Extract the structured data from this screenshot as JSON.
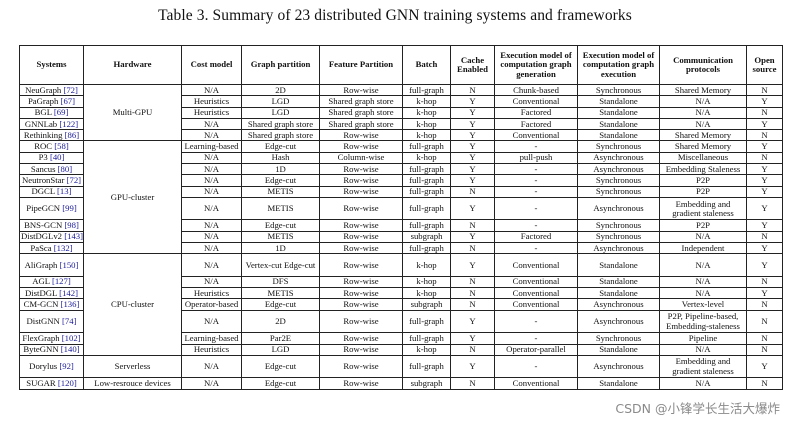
{
  "caption": "Table 3.  Summary of 23 distributed GNN training systems and frameworks",
  "headers": {
    "systems": "Systems",
    "hardware": "Hardware",
    "cost_model": "Cost model",
    "graph_partition": "Graph partition",
    "feature_partition": "Feature Partition",
    "batch": "Batch",
    "cache": "Cache Enabled",
    "exec_gen": "Execution model of computation graph generation",
    "exec_exec": "Execution model of computation graph execution",
    "comm": "Communication protocols",
    "open": "Open source"
  },
  "hardware_groups": {
    "multi_gpu": "Multi-GPU",
    "gpu_cluster": "GPU-cluster",
    "cpu_cluster": "CPU-cluster",
    "serverless": "Serverless",
    "low_resource": "Low-resrouce devices"
  },
  "rows": [
    {
      "name": "NeuGraph",
      "ref": "[72]",
      "cost": "N/A",
      "gp": "2D",
      "fp": "Row-wise",
      "batch": "full-graph",
      "cache": "N",
      "gen": "Chunk-based",
      "exec": "Synchronous",
      "comm": "Shared Memory",
      "open": "N"
    },
    {
      "name": "PaGraph",
      "ref": "[67]",
      "cost": "Heuristics",
      "gp": "LGD",
      "fp": "Shared graph store",
      "batch": "k-hop",
      "cache": "Y",
      "gen": "Conventional",
      "exec": "Standalone",
      "comm": "N/A",
      "open": "Y"
    },
    {
      "name": "BGL",
      "ref": "[69]",
      "cost": "Heuristics",
      "gp": "LGD",
      "fp": "Shared graph store",
      "batch": "k-hop",
      "cache": "Y",
      "gen": "Factored",
      "exec": "Standalone",
      "comm": "N/A",
      "open": "N"
    },
    {
      "name": "GNNLab",
      "ref": "[122]",
      "cost": "N/A",
      "gp": "Shared graph store",
      "fp": "Shared graph store",
      "batch": "k-hop",
      "cache": "Y",
      "gen": "Factored",
      "exec": "Standalone",
      "comm": "N/A",
      "open": "Y"
    },
    {
      "name": "Rethinking",
      "ref": "[86]",
      "cost": "N/A",
      "gp": "Shared graph store",
      "fp": "Row-wise",
      "batch": "k-hop",
      "cache": "Y",
      "gen": "Conventional",
      "exec": "Standalone",
      "comm": "Shared Memory",
      "open": "N"
    },
    {
      "name": "ROC",
      "ref": "[58]",
      "cost": "Learning-based",
      "gp": "Edge-cut",
      "fp": "Row-wise",
      "batch": "full-graph",
      "cache": "Y",
      "gen": "-",
      "exec": "Synchronous",
      "comm": "Shared Memory",
      "open": "Y"
    },
    {
      "name": "P3",
      "ref": "[40]",
      "cost": "N/A",
      "gp": "Hash",
      "fp": "Column-wise",
      "batch": "k-hop",
      "cache": "Y",
      "gen": "pull-push",
      "exec": "Asynchronous",
      "comm": "Miscellaneous",
      "open": "N"
    },
    {
      "name": "Sancus",
      "ref": "[80]",
      "cost": "N/A",
      "gp": "1D",
      "fp": "Row-wise",
      "batch": "full-graph",
      "cache": "Y",
      "gen": "-",
      "exec": "Asynchronous",
      "comm": "Embedding Staleness",
      "open": "Y"
    },
    {
      "name": "NeutronStar",
      "ref": "[72]",
      "cost": "N/A",
      "gp": "Edge-cut",
      "fp": "Row-wise",
      "batch": "full-graph",
      "cache": "Y",
      "gen": "-",
      "exec": "Synchronous",
      "comm": "P2P",
      "open": "Y"
    },
    {
      "name": "DGCL",
      "ref": "[13]",
      "cost": "N/A",
      "gp": "METIS",
      "fp": "Row-wise",
      "batch": "full-graph",
      "cache": "N",
      "gen": "-",
      "exec": "Synchronous",
      "comm": "P2P",
      "open": "Y"
    },
    {
      "name": "PipeGCN",
      "ref": "[99]",
      "cost": "N/A",
      "gp": "METIS",
      "fp": "Row-wise",
      "batch": "full-graph",
      "cache": "Y",
      "gen": "-",
      "exec": "Asynchronous",
      "comm": "Embedding and gradient staleness",
      "open": "Y",
      "tall": true
    },
    {
      "name": "BNS-GCN",
      "ref": "[98]",
      "cost": "N/A",
      "gp": "Edge-cut",
      "fp": "Row-wise",
      "batch": "full-graph",
      "cache": "N",
      "gen": "-",
      "exec": "Synchronous",
      "comm": "P2P",
      "open": "Y"
    },
    {
      "name": "DistDGLv2",
      "ref": "[143]",
      "cost": "N/A",
      "gp": "METIS",
      "fp": "Row-wise",
      "batch": "subgraph",
      "cache": "Y",
      "gen": "Factored",
      "exec": "Synchronous",
      "comm": "N/A",
      "open": "N"
    },
    {
      "name": "PaSca",
      "ref": "[132]",
      "cost": "N/A",
      "gp": "1D",
      "fp": "Row-wise",
      "batch": "full-graph",
      "cache": "N",
      "gen": "-",
      "exec": "Asynchronous",
      "comm": "Independent",
      "open": "Y"
    },
    {
      "name": "AliGraph",
      "ref": "[150]",
      "cost": "N/A",
      "gp": "Vertex-cut Edge-cut",
      "fp": "Row-wise",
      "batch": "k-hop",
      "cache": "Y",
      "gen": "Conventional",
      "exec": "Standalone",
      "comm": "N/A",
      "open": "Y",
      "tall": true
    },
    {
      "name": "AGL",
      "ref": "[127]",
      "cost": "N/A",
      "gp": "DFS",
      "fp": "Row-wise",
      "batch": "k-hop",
      "cache": "N",
      "gen": "Conventional",
      "exec": "Standalone",
      "comm": "N/A",
      "open": "N"
    },
    {
      "name": "DistDGL",
      "ref": "[142]",
      "cost": "Heuristics",
      "gp": "METIS",
      "fp": "Row-wise",
      "batch": "k-hop",
      "cache": "N",
      "gen": "Conventional",
      "exec": "Standalone",
      "comm": "N/A",
      "open": "Y"
    },
    {
      "name": "CM-GCN",
      "ref": "[136]",
      "cost": "Operator-based",
      "gp": "Edge-cut",
      "fp": "Row-wise",
      "batch": "subgraph",
      "cache": "N",
      "gen": "Conventional",
      "exec": "Asynchronous",
      "comm": "Vertex-level",
      "open": "N"
    },
    {
      "name": "DistGNN",
      "ref": "[74]",
      "cost": "N/A",
      "gp": "2D",
      "fp": "Row-wise",
      "batch": "full-graph",
      "cache": "Y",
      "gen": "-",
      "exec": "Asynchronous",
      "comm": "P2P, Pipeline-based, Embedding-staleness",
      "open": "N",
      "tall": true
    },
    {
      "name": "FlexGraph",
      "ref": "[102]",
      "cost": "Learning-based",
      "gp": "Par2E",
      "fp": "Row-wise",
      "batch": "full-graph",
      "cache": "Y",
      "gen": "-",
      "exec": "Synchronous",
      "comm": "Pipeline",
      "open": "N"
    },
    {
      "name": "ByteGNN",
      "ref": "[140]",
      "cost": "Heuristics",
      "gp": "LGD",
      "fp": "Row-wise",
      "batch": "k-hop",
      "cache": "N",
      "gen": "Operator-parallel",
      "exec": "Standalone",
      "comm": "N/A",
      "open": "N"
    },
    {
      "name": "Dorylus",
      "ref": "[92]",
      "cost": "N/A",
      "gp": "Edge-cut",
      "fp": "Row-wise",
      "batch": "full-graph",
      "cache": "Y",
      "gen": "-",
      "exec": "Asynchronous",
      "comm": "Embedding and gradient staleness",
      "open": "Y",
      "tall": true
    },
    {
      "name": "SUGAR",
      "ref": "[120]",
      "cost": "N/A",
      "gp": "Edge-cut",
      "fp": "Row-wise",
      "batch": "subgraph",
      "cache": "N",
      "gen": "Conventional",
      "exec": "Standalone",
      "comm": "N/A",
      "open": "N"
    }
  ],
  "watermark": "CSDN @小锋学长生活大爆炸"
}
